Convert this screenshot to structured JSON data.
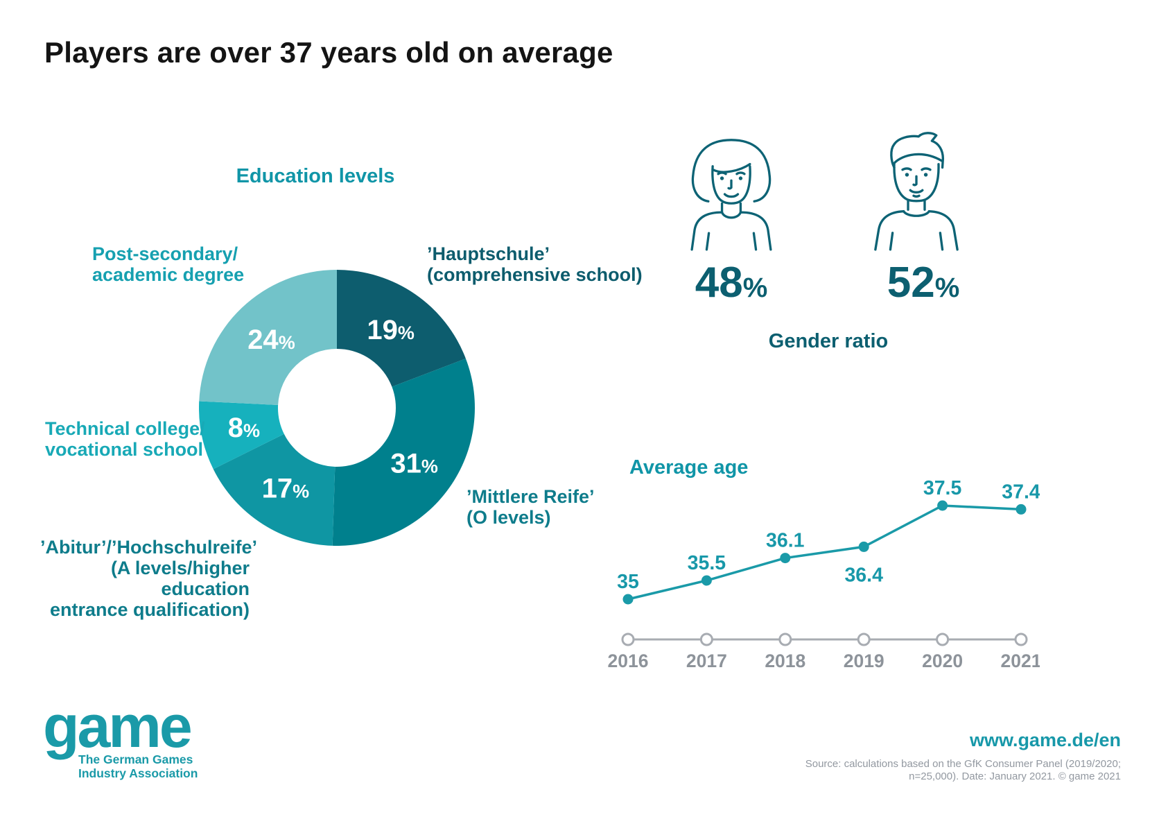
{
  "title": "Players are over 37 years old on average",
  "accent_teal": "#1a9aa8",
  "dark_teal": "#0c5f70",
  "gender": {
    "title": "Gender ratio",
    "female": {
      "value": "48",
      "unit": "%"
    },
    "male": {
      "value": "52",
      "unit": "%"
    },
    "female_icon": "woman-outline-icon",
    "male_icon": "man-outline-icon",
    "icon_color": "#0d6375"
  },
  "footer": {
    "logo_text": "game",
    "tagline_line1": "The German Games",
    "tagline_line2": "Industry Association",
    "website": "www.game.de/en",
    "source_line1": "Source: calculations based on the GfK Consumer Panel (2019/2020;",
    "source_line2": "n=25,000). Date: January 2021. © game 2021"
  },
  "chart_data": [
    {
      "type": "pie",
      "donut": true,
      "title": "Education levels",
      "unit": "%",
      "value_label_color": "#ffffff",
      "segments": [
        {
          "label": "’Hauptschule’ (comprehensive school)",
          "value": 19,
          "color": "#0d5d6e",
          "label_color": "#0d5c6d",
          "label_lines": [
            "’Hauptschule’",
            "(comprehensive school)"
          ]
        },
        {
          "label": "’Mittlere Reife’ (O levels)",
          "value": 31,
          "color": "#00808d",
          "label_color": "#0e7c8b",
          "label_lines": [
            "’Mittlere Reife’",
            "(O levels)"
          ]
        },
        {
          "label": "’Abitur’/’Hochschulreife’ (A levels/higher education entrance qualification)",
          "value": 17,
          "color": "#0f96a3",
          "label_color": "#0e7c8b",
          "label_lines": [
            "’Abitur’/’Hochschulreife’",
            "(A levels/higher education",
            "entrance qualification)"
          ]
        },
        {
          "label": "Technical college/vocational school",
          "value": 8,
          "color": "#16b1bd",
          "label_color": "#18a9b6",
          "label_lines": [
            "Technical college/",
            "vocational school"
          ]
        },
        {
          "label": "Post-secondary/academic degree",
          "value": 24,
          "color": "#72c3c9",
          "label_color": "#16a0b0",
          "label_lines": [
            "Post-secondary/",
            "academic degree"
          ]
        }
      ]
    },
    {
      "type": "line",
      "title": "Average age",
      "x": [
        "2016",
        "2017",
        "2018",
        "2019",
        "2020",
        "2021"
      ],
      "values": [
        35,
        35.5,
        36.1,
        36.4,
        37.5,
        37.4
      ],
      "labels": [
        "35",
        "35.5",
        "36.1",
        "36.4",
        "37.5",
        "37.4"
      ],
      "label_positions": [
        "above",
        "above",
        "above",
        "below",
        "above",
        "above"
      ],
      "line_color": "#1a9aa8",
      "value_label_color": "#1898a9",
      "axis_color": "#a8acb2",
      "tick_label_color": "#8d939a",
      "ylim": [
        35,
        37.5
      ],
      "grid": false,
      "legend_position": "none"
    }
  ]
}
